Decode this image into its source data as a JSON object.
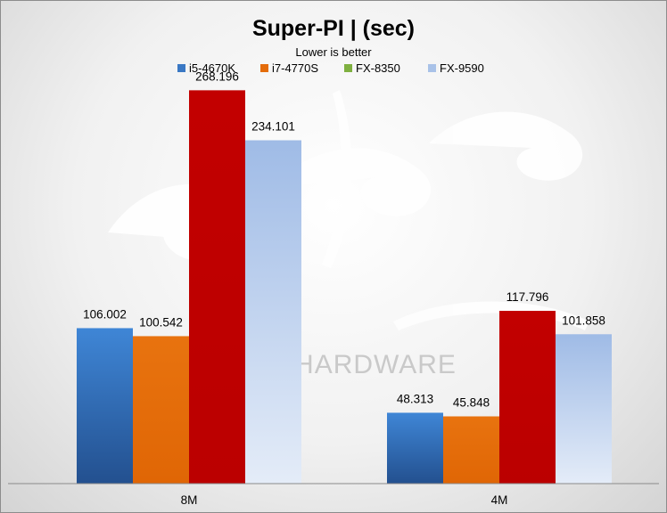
{
  "chart_data": {
    "type": "bar",
    "title": "Super-PI | (sec)",
    "subtitle": "Lower is better",
    "categories": [
      "8M",
      "4M"
    ],
    "series": [
      {
        "name": "i5-4670K",
        "values": [
          106.002,
          48.313
        ]
      },
      {
        "name": "i7-4770S",
        "values": [
          100.542,
          45.848
        ]
      },
      {
        "name": "FX-8350",
        "values": [
          268.196,
          117.796
        ]
      },
      {
        "name": "FX-9590",
        "values": [
          234.101,
          101.858
        ]
      }
    ],
    "data_labels": [
      [
        "106.002",
        "48.313"
      ],
      [
        "100.542",
        "45.848"
      ],
      [
        "268.196",
        "117.796"
      ],
      [
        "234.101",
        "101.858"
      ]
    ],
    "series_legend_colors": [
      "#3a78c4",
      "#e46c0a",
      "#7fb040",
      "#a9c2e8"
    ],
    "bar_colors_by_category": [
      [
        "#3a78c4",
        "#e46c0a",
        "#c00000",
        "#a9c2e8"
      ],
      [
        "#3a78c4",
        "#e46c0a",
        "#c00000",
        "#a9c2e8"
      ]
    ],
    "xlabel": "",
    "ylabel": "",
    "ylim": [
      0,
      300
    ],
    "y_axis_visible": false,
    "grid": false,
    "legend_position": "top-center"
  },
  "watermark": {
    "text": "HARDWARE"
  }
}
